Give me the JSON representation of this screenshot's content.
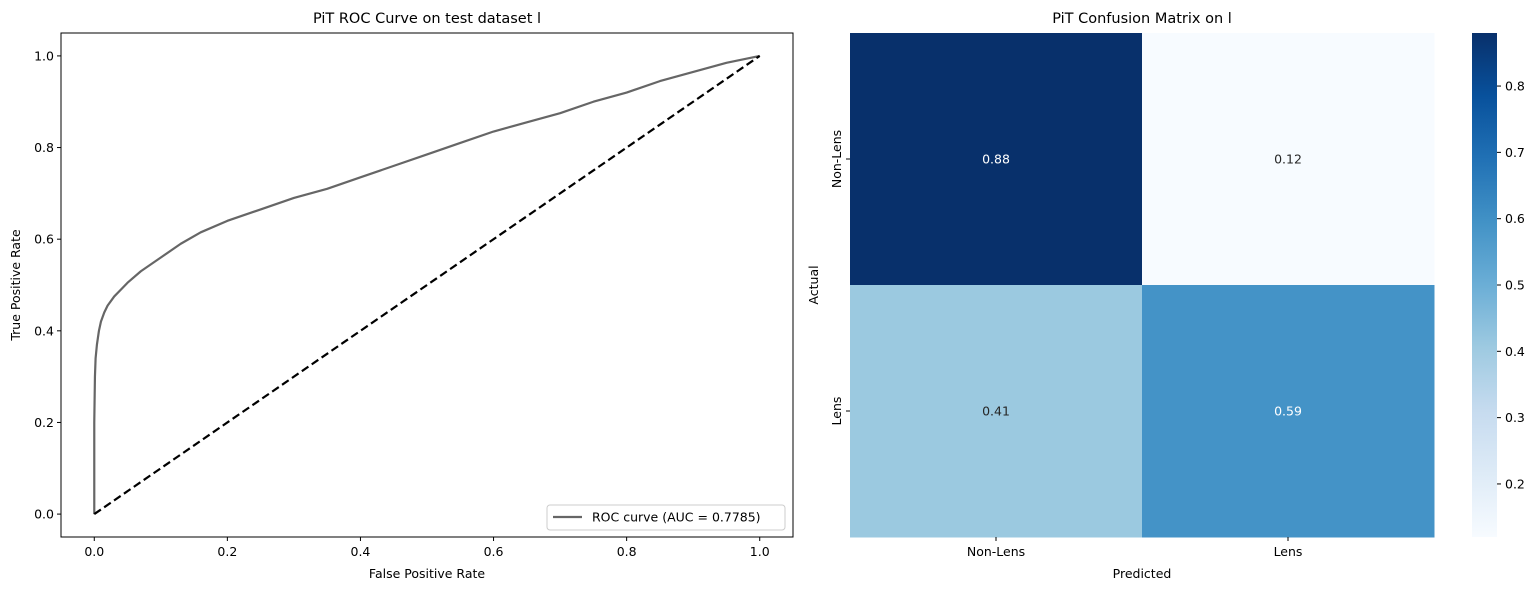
{
  "chart_data": [
    {
      "type": "line",
      "title": "PiT ROC Curve on test dataset l",
      "xlabel": "False Positive Rate",
      "ylabel": "True Positive Rate",
      "xlim": [
        -0.05,
        1.05
      ],
      "ylim": [
        -0.05,
        1.05
      ],
      "xticks": [
        "0.0",
        "0.2",
        "0.4",
        "0.6",
        "0.8",
        "1.0"
      ],
      "yticks": [
        "0.0",
        "0.2",
        "0.4",
        "0.6",
        "0.8",
        "1.0"
      ],
      "grid": false,
      "legend_position": "lower-right",
      "series": [
        {
          "name": "ROC curve (AUC = 0.7785)",
          "color": "#666666",
          "x": [
            0.0,
            0.0,
            0.001,
            0.002,
            0.004,
            0.007,
            0.01,
            0.015,
            0.02,
            0.03,
            0.04,
            0.05,
            0.07,
            0.1,
            0.13,
            0.16,
            0.2,
            0.25,
            0.3,
            0.35,
            0.4,
            0.45,
            0.5,
            0.55,
            0.6,
            0.65,
            0.7,
            0.75,
            0.8,
            0.85,
            0.9,
            0.95,
            1.0
          ],
          "y": [
            0.0,
            0.2,
            0.3,
            0.34,
            0.37,
            0.4,
            0.42,
            0.44,
            0.455,
            0.475,
            0.49,
            0.505,
            0.53,
            0.56,
            0.59,
            0.615,
            0.64,
            0.665,
            0.69,
            0.71,
            0.735,
            0.76,
            0.785,
            0.81,
            0.835,
            0.855,
            0.875,
            0.9,
            0.92,
            0.945,
            0.965,
            0.985,
            1.0
          ]
        },
        {
          "name": "",
          "color": "#000000",
          "dashed": true,
          "x": [
            0.0,
            1.0
          ],
          "y": [
            0.0,
            1.0
          ]
        }
      ]
    },
    {
      "type": "heatmap",
      "title": "PiT Confusion Matrix on l",
      "xlabel": "Predicted",
      "ylabel": "Actual",
      "x_categories": [
        "Non-Lens",
        "Lens"
      ],
      "y_categories": [
        "Non-Lens",
        "Lens"
      ],
      "values": [
        [
          0.88,
          0.12
        ],
        [
          0.41,
          0.59
        ]
      ],
      "labels": [
        [
          "0.88",
          "0.12"
        ],
        [
          "0.41",
          "0.59"
        ]
      ],
      "colormap": "Blues",
      "colorbar_range": [
        0.12,
        0.88
      ],
      "colorbar_ticks": [
        "0.2",
        "0.3",
        "0.4",
        "0.5",
        "0.6",
        "0.7",
        "0.8"
      ]
    }
  ]
}
